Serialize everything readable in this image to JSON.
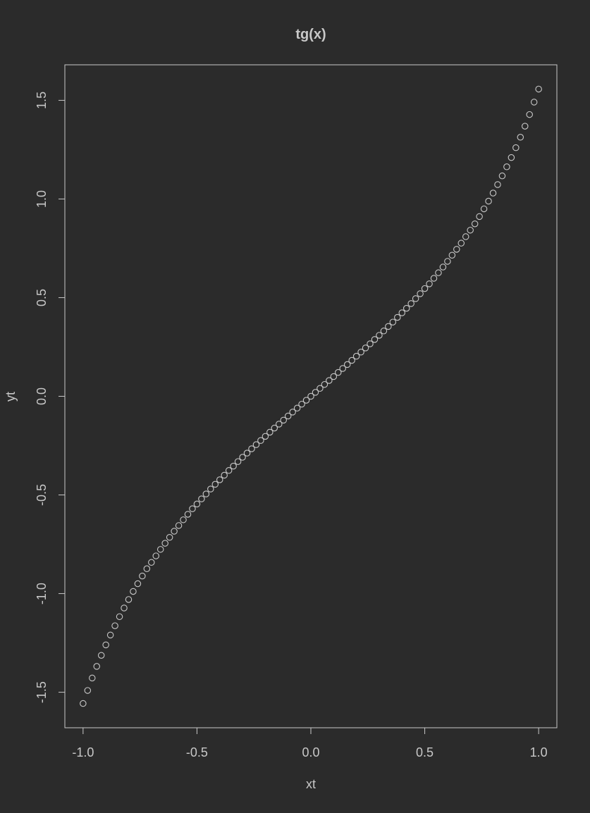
{
  "colors": {
    "background": "#2b2b2b",
    "foreground": "#c8c8c8",
    "marker": "#c8c8c8"
  },
  "chart_data": {
    "type": "scatter",
    "title": "tg(x)",
    "xlabel": "xt",
    "ylabel": "yt",
    "xlim": [
      -1.08,
      1.08
    ],
    "ylim": [
      -1.68,
      1.68
    ],
    "xticks": [
      -1.0,
      -0.5,
      0.0,
      0.5,
      1.0
    ],
    "xtick_labels": [
      "-1.0",
      "-0.5",
      "0.0",
      "0.5",
      "1.0"
    ],
    "yticks": [
      -1.5,
      -1.0,
      -0.5,
      0.0,
      0.5,
      1.0,
      1.5
    ],
    "ytick_labels": [
      "-1.5",
      "-1.0",
      "-0.5",
      "0.0",
      "0.5",
      "1.0",
      "1.5"
    ],
    "marker": "open-circle",
    "grid": false,
    "x": [
      -1.0,
      -0.98,
      -0.96,
      -0.94,
      -0.92,
      -0.9,
      -0.88,
      -0.86,
      -0.84,
      -0.82,
      -0.8,
      -0.78,
      -0.76,
      -0.74,
      -0.72,
      -0.7,
      -0.68,
      -0.66,
      -0.64,
      -0.62,
      -0.6,
      -0.58,
      -0.56,
      -0.54,
      -0.52,
      -0.5,
      -0.48,
      -0.46,
      -0.44,
      -0.42,
      -0.4,
      -0.38,
      -0.36,
      -0.34,
      -0.32,
      -0.3,
      -0.28,
      -0.26,
      -0.24,
      -0.22,
      -0.2,
      -0.18,
      -0.16,
      -0.14,
      -0.12,
      -0.1,
      -0.08,
      -0.06,
      -0.04,
      -0.02,
      0.0,
      0.02,
      0.04,
      0.06,
      0.08,
      0.1,
      0.12,
      0.14,
      0.16,
      0.18,
      0.2,
      0.22,
      0.24,
      0.26,
      0.28,
      0.3,
      0.32,
      0.34,
      0.36,
      0.38,
      0.4,
      0.42,
      0.44,
      0.46,
      0.48,
      0.5,
      0.52,
      0.54,
      0.56,
      0.58,
      0.6,
      0.62,
      0.64,
      0.66,
      0.68,
      0.7,
      0.72,
      0.74,
      0.76,
      0.78,
      0.8,
      0.82,
      0.84,
      0.86,
      0.88,
      0.9,
      0.92,
      0.94,
      0.96,
      0.98,
      1.0
    ],
    "y": [
      -1.557,
      -1.491,
      -1.428,
      -1.369,
      -1.313,
      -1.26,
      -1.21,
      -1.163,
      -1.117,
      -1.073,
      -1.03,
      -0.989,
      -0.95,
      -0.911,
      -0.874,
      -0.842,
      -0.809,
      -0.776,
      -0.745,
      -0.715,
      -0.684,
      -0.655,
      -0.626,
      -0.598,
      -0.57,
      -0.546,
      -0.52,
      -0.495,
      -0.47,
      -0.446,
      -0.423,
      -0.4,
      -0.376,
      -0.354,
      -0.331,
      -0.309,
      -0.288,
      -0.266,
      -0.245,
      -0.224,
      -0.203,
      -0.182,
      -0.161,
      -0.141,
      -0.121,
      -0.1,
      -0.08,
      -0.06,
      -0.04,
      -0.02,
      0.0,
      0.02,
      0.04,
      0.06,
      0.08,
      0.1,
      0.121,
      0.141,
      0.161,
      0.182,
      0.203,
      0.224,
      0.245,
      0.266,
      0.288,
      0.309,
      0.331,
      0.354,
      0.376,
      0.4,
      0.423,
      0.446,
      0.47,
      0.495,
      0.52,
      0.546,
      0.57,
      0.598,
      0.626,
      0.655,
      0.684,
      0.715,
      0.745,
      0.776,
      0.809,
      0.842,
      0.874,
      0.911,
      0.95,
      0.989,
      1.03,
      1.073,
      1.117,
      1.163,
      1.21,
      1.26,
      1.313,
      1.369,
      1.428,
      1.491,
      1.557
    ]
  }
}
